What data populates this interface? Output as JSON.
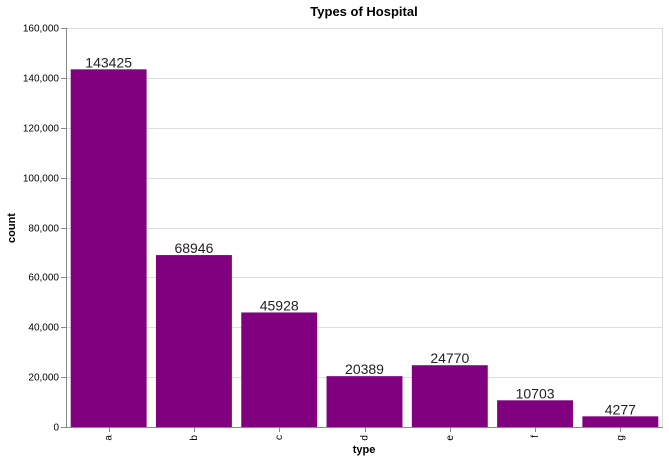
{
  "chart_data": {
    "type": "bar",
    "title": "Types of Hospital",
    "xlabel": "type",
    "ylabel": "count",
    "categories": [
      "a",
      "b",
      "c",
      "d",
      "e",
      "f",
      "g"
    ],
    "values": [
      143425,
      68946,
      45928,
      20389,
      24770,
      10703,
      4277
    ],
    "data_labels": [
      "143425",
      "68946",
      "45928",
      "20389",
      "24770",
      "10703",
      "4277"
    ],
    "ylim": [
      0,
      160000
    ],
    "yticks": [
      0,
      20000,
      40000,
      60000,
      80000,
      100000,
      120000,
      140000,
      160000
    ],
    "ytick_labels": [
      "0",
      "20,000",
      "40,000",
      "60,000",
      "80,000",
      "100,000",
      "120,000",
      "140,000",
      "160,000"
    ],
    "grid": true,
    "bar_color": "#800080"
  }
}
